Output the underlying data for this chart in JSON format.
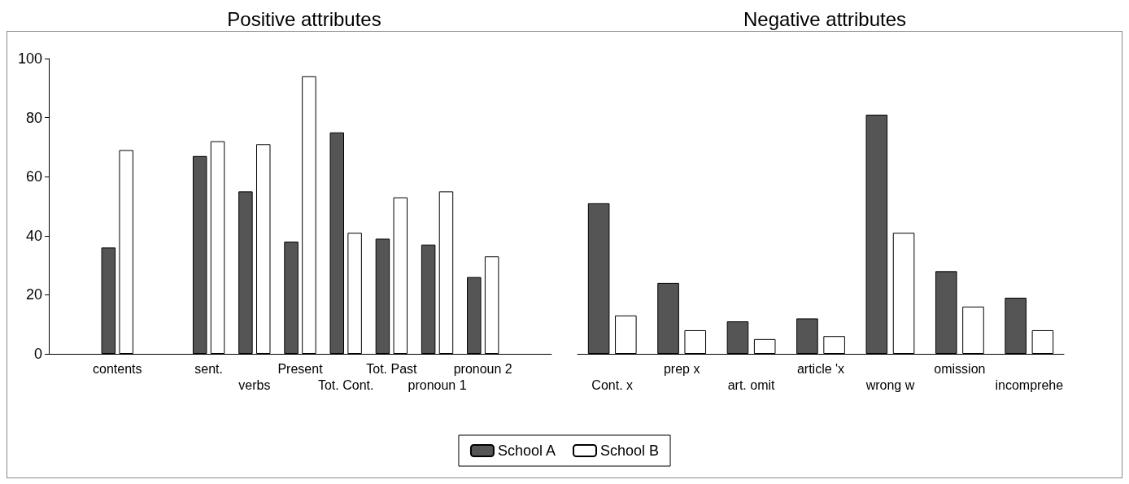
{
  "chart_data": [
    {
      "type": "bar",
      "title": "Positive attributes",
      "categories": [
        null,
        "contents",
        null,
        "sent.",
        "verbs",
        "Present",
        "Tot. Cont.",
        "Tot. Past",
        "pronoun 1",
        "pronoun 2",
        null
      ],
      "series": [
        {
          "name": "School A",
          "color": "#555555",
          "values": [
            null,
            36,
            null,
            67,
            55,
            38,
            75,
            39,
            37,
            26,
            null
          ]
        },
        {
          "name": "School B",
          "color": "#ffffff",
          "values": [
            null,
            69,
            null,
            72,
            71,
            94,
            41,
            53,
            55,
            33,
            null
          ]
        }
      ],
      "ylim": [
        0,
        100
      ],
      "yticks": [
        0,
        20,
        40,
        60,
        80,
        100
      ],
      "grid": false,
      "legend": "bottom"
    },
    {
      "type": "bar",
      "title": "Negative attributes",
      "categories": [
        "Cont. x",
        "prep x",
        "art. omit",
        "article 'x",
        "wrong w",
        "omission",
        "incomprehe"
      ],
      "series": [
        {
          "color": "#555555",
          "values": [
            51,
            24,
            11,
            12,
            81,
            28,
            19
          ]
        },
        {
          "color": "#ffffff",
          "values": [
            13,
            8,
            5,
            6,
            41,
            16,
            8
          ]
        }
      ],
      "ylim": [
        0,
        100
      ],
      "yticks": [
        0,
        20,
        40,
        60,
        80,
        100
      ],
      "grid": false,
      "tick_labels": "x"
    }
  ]
}
